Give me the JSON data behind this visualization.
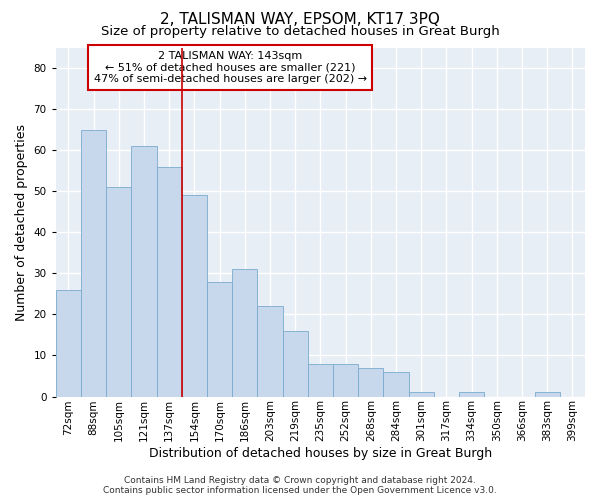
{
  "title": "2, TALISMAN WAY, EPSOM, KT17 3PQ",
  "subtitle": "Size of property relative to detached houses in Great Burgh",
  "xlabel": "Distribution of detached houses by size in Great Burgh",
  "ylabel": "Number of detached properties",
  "categories": [
    "72sqm",
    "88sqm",
    "105sqm",
    "121sqm",
    "137sqm",
    "154sqm",
    "170sqm",
    "186sqm",
    "203sqm",
    "219sqm",
    "235sqm",
    "252sqm",
    "268sqm",
    "284sqm",
    "301sqm",
    "317sqm",
    "334sqm",
    "350sqm",
    "366sqm",
    "383sqm",
    "399sqm"
  ],
  "values": [
    26,
    65,
    51,
    61,
    56,
    49,
    28,
    31,
    22,
    16,
    8,
    8,
    7,
    6,
    1,
    0,
    1,
    0,
    0,
    1,
    0
  ],
  "bar_color": "#c8d8ec",
  "bar_edge_color": "#7aaace",
  "vline_x_index": 4,
  "vline_color": "#cc0000",
  "annotation_text": "2 TALISMAN WAY: 143sqm\n← 51% of detached houses are smaller (221)\n47% of semi-detached houses are larger (202) →",
  "annotation_box_color": "white",
  "annotation_box_edge": "#cc0000",
  "ylim": [
    0,
    85
  ],
  "yticks": [
    0,
    10,
    20,
    30,
    40,
    50,
    60,
    70,
    80
  ],
  "footer": "Contains HM Land Registry data © Crown copyright and database right 2024.\nContains public sector information licensed under the Open Government Licence v3.0.",
  "plot_bg_color": "#e8eef5",
  "fig_bg_color": "#ffffff",
  "grid_color": "#ffffff",
  "title_fontsize": 11,
  "subtitle_fontsize": 9.5,
  "tick_fontsize": 7.5,
  "label_fontsize": 9,
  "annotation_fontsize": 8,
  "footer_fontsize": 6.5
}
